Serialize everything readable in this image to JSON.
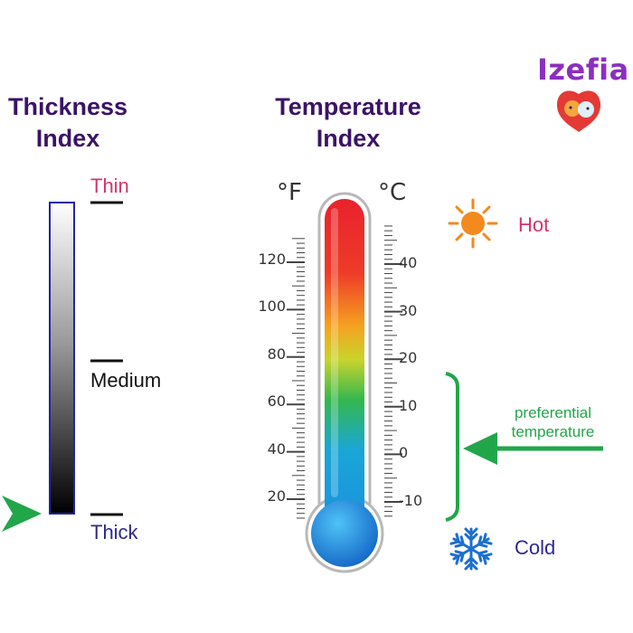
{
  "brand": {
    "name": "Izefia"
  },
  "thickness": {
    "title_line1": "Thickness",
    "title_line2": "Index",
    "labels": {
      "thin": "Thin",
      "medium": "Medium",
      "thick": "Thick"
    },
    "marker_position": "thick"
  },
  "temperature": {
    "title_line1": "Temperature",
    "title_line2": "Index",
    "fahrenheit_unit": "°F",
    "celsius_unit": "°C",
    "fahrenheit_ticks": [
      "120",
      "100",
      "80",
      "60",
      "40",
      "20"
    ],
    "celsius_ticks": [
      "40",
      "30",
      "20",
      "10",
      "0",
      "-10"
    ],
    "hot_label": "Hot",
    "cold_label": "Cold",
    "preferential_line1": "preferential",
    "preferential_line2": "temperature",
    "preferential_range_celsius": [
      -13,
      15
    ]
  },
  "colors": {
    "heading": "#3a1366",
    "hot": "#d6336c",
    "cold": "#2e2a8a",
    "pointer": "#22a64a",
    "snowflake": "#1c6fd1",
    "sun": "#f28a1e"
  },
  "icons": {
    "sun": "sun-icon",
    "snowflake": "snowflake-icon",
    "pointer": "arrow-icon"
  }
}
